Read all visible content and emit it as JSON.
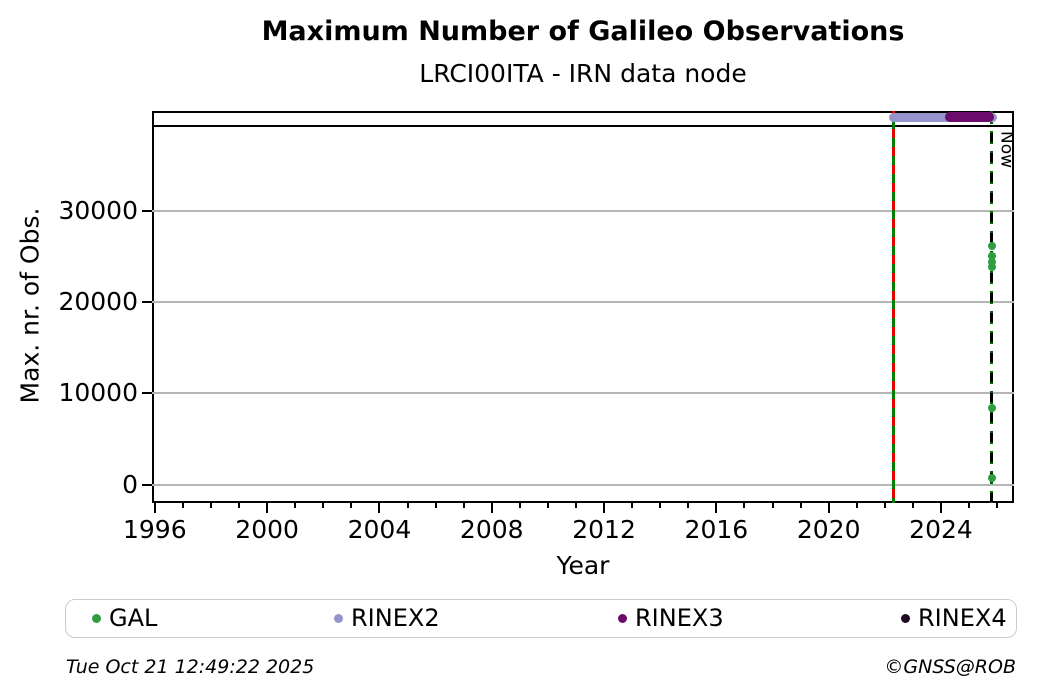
{
  "title": "Maximum Number of Galileo Observations",
  "subtitle": "LRCI00ITA - IRN data node",
  "footer": {
    "timestamp": "Tue Oct 21 12:49:22 2025",
    "credit": "©GNSS@ROB"
  },
  "legend": {
    "items": [
      {
        "label": "GAL",
        "color": "#2f9e40"
      },
      {
        "label": "RINEX2",
        "color": "#9595cb"
      },
      {
        "label": "RINEX3",
        "color": "#6b0b6b"
      },
      {
        "label": "RINEX4",
        "color": "#1e0a22"
      }
    ]
  },
  "chart_data": {
    "type": "scatter",
    "title": "Maximum Number of Galileo Observations",
    "subtitle": "LRCI00ITA - IRN data node",
    "xlabel": "Year",
    "ylabel": "Max. nr. of Obs.",
    "xlim": [
      1995.9,
      2026.6
    ],
    "ylim": [
      -2000,
      40900
    ],
    "x_major_ticks": [
      1996,
      2000,
      2004,
      2008,
      2012,
      2016,
      2020,
      2024
    ],
    "x_minor_tick_step": 1,
    "y_ticks": [
      0,
      10000,
      20000,
      30000
    ],
    "grid": "horizontal-only",
    "grid_color": "#b5b5b5",
    "legend_position": "bottom",
    "series": [
      {
        "name": "GAL",
        "color": "#2f9e40",
        "points": [
          [
            2025.8,
            26100
          ],
          [
            2025.8,
            25000
          ],
          [
            2025.8,
            24400
          ],
          [
            2025.8,
            23800
          ],
          [
            2025.8,
            8400
          ],
          [
            2025.8,
            700
          ]
        ]
      }
    ],
    "availability_bars": [
      {
        "name": "RINEX2",
        "color": "#9595cb",
        "start": 2022.3,
        "end": 2025.85
      },
      {
        "name": "RINEX3",
        "color": "#6b0b6b",
        "start": 2024.3,
        "end": 2025.75
      }
    ],
    "reference_line": {
      "y": 39300,
      "color": "#000000"
    },
    "event_lines": [
      {
        "name": "equipment-change",
        "x": 2022.3,
        "label": "",
        "solid_color": "#008000",
        "dash_color": "#e60000"
      },
      {
        "name": "now",
        "x": 2025.8,
        "label": "Now",
        "solid_color": "#006400",
        "dash_color": "#000000"
      }
    ]
  }
}
